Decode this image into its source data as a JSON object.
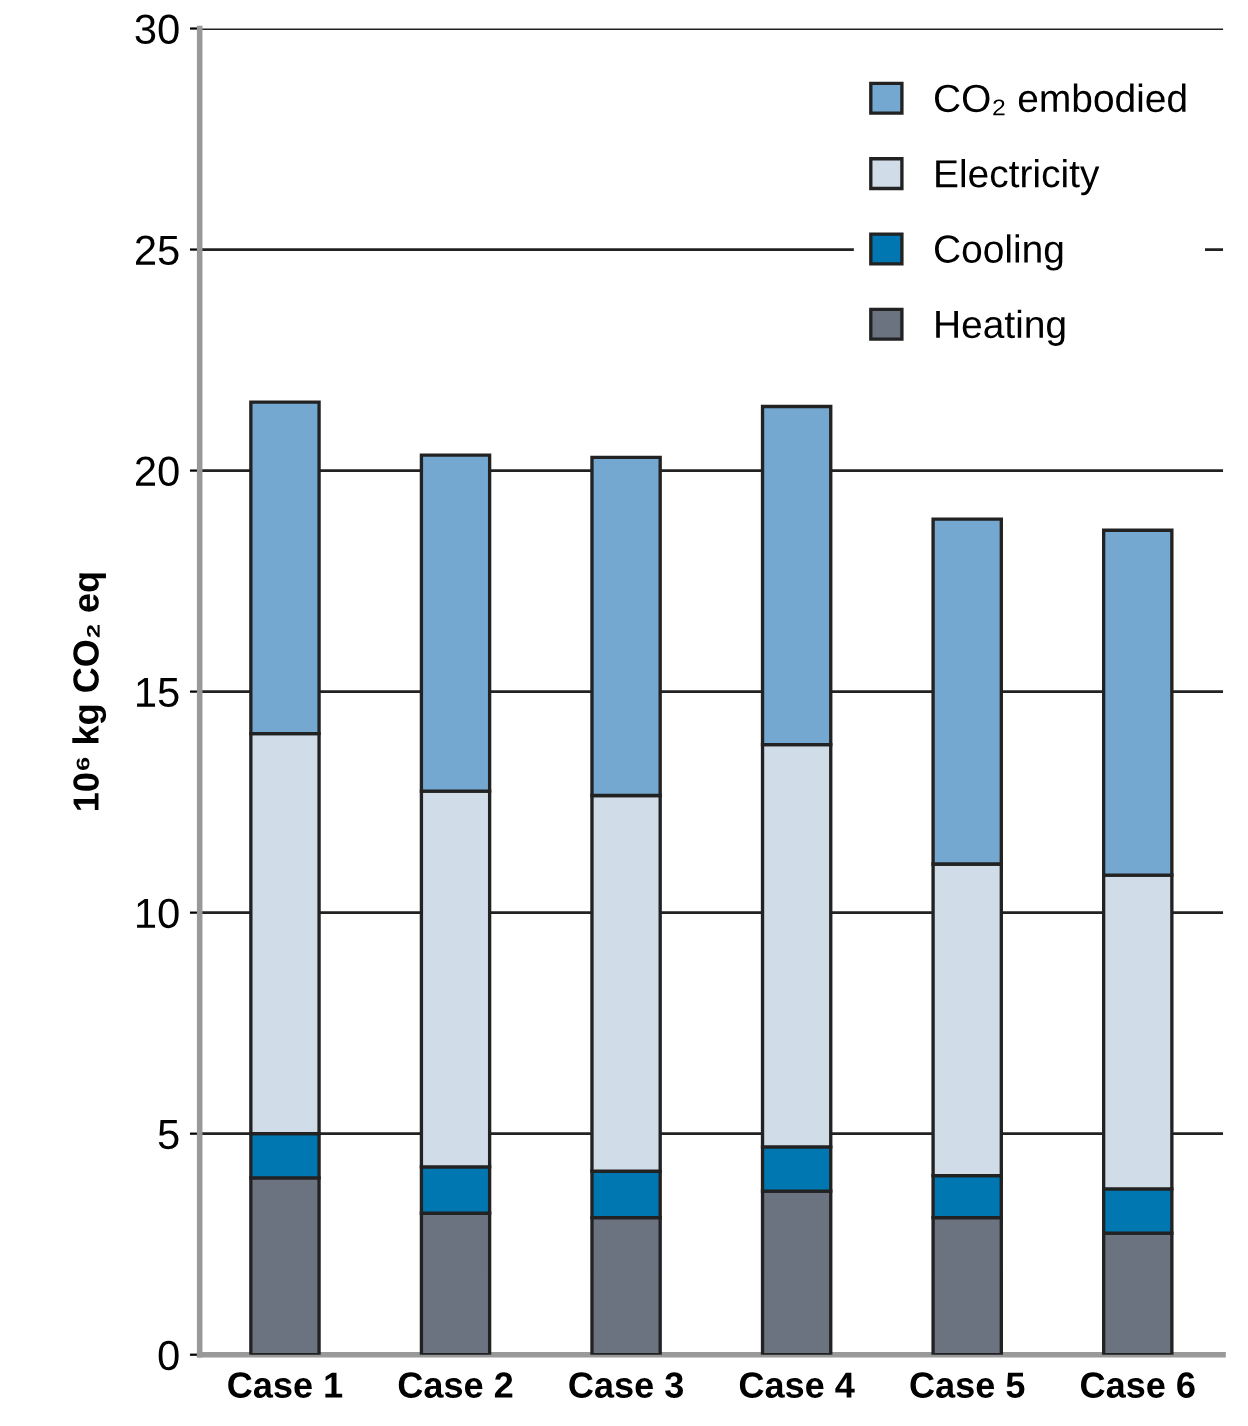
{
  "chart_data": {
    "type": "bar",
    "stacked": true,
    "ylabel": "10⁶ kg CO₂ eq",
    "categories": [
      "Case 1",
      "Case 2",
      "Case 3",
      "Case 4",
      "Case 5",
      "Case 6"
    ],
    "series": [
      {
        "name": "Heating",
        "color": "#6b7280",
        "values": [
          4.0,
          3.2,
          3.1,
          3.7,
          3.1,
          2.75
        ]
      },
      {
        "name": "Cooling",
        "color": "#0077b0",
        "values": [
          1.0,
          1.05,
          1.05,
          1.0,
          0.95,
          1.0
        ]
      },
      {
        "name": "Electricity",
        "color": "#d0dce8",
        "values": [
          9.05,
          8.5,
          8.5,
          9.1,
          7.05,
          7.1
        ]
      },
      {
        "name": "CO₂ embodied",
        "color": "#74a8d0",
        "values": [
          7.5,
          7.6,
          7.65,
          7.65,
          7.8,
          7.8
        ]
      }
    ],
    "ylim": [
      0,
      30
    ],
    "yticks": [
      0,
      5,
      10,
      15,
      20,
      25,
      30
    ],
    "grid": "y",
    "legend": "top right"
  }
}
